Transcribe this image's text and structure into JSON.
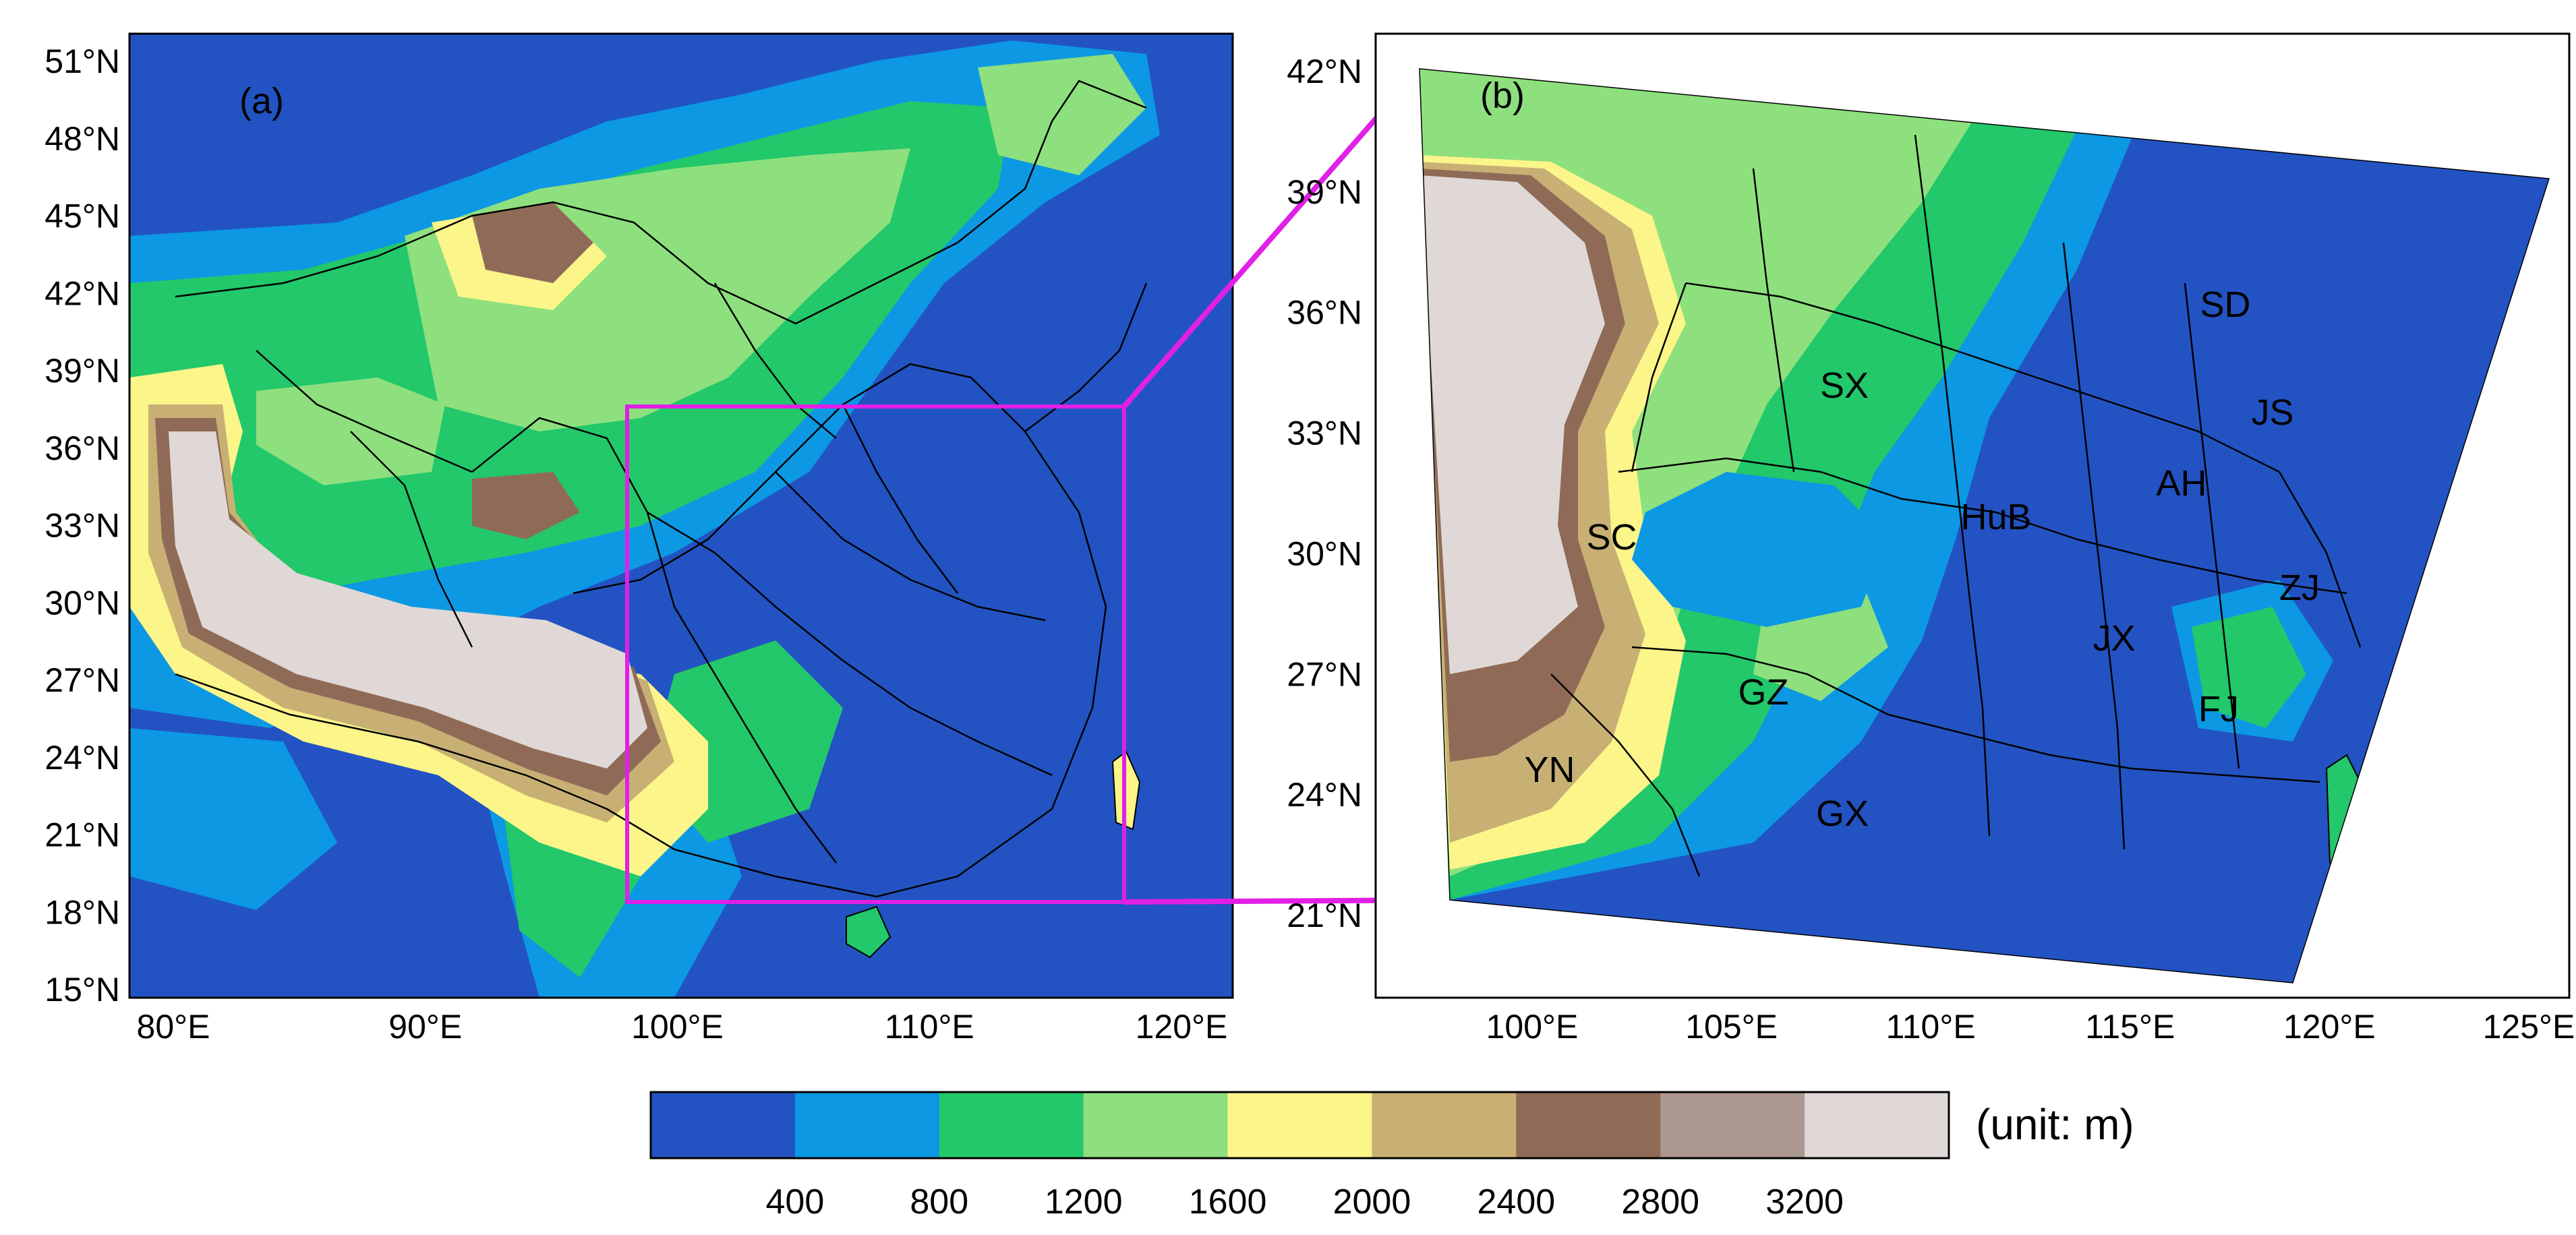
{
  "panel_a": {
    "label": "(a)",
    "lat_ticks": [
      "51°N",
      "48°N",
      "45°N",
      "42°N",
      "39°N",
      "36°N",
      "33°N",
      "30°N",
      "27°N",
      "24°N",
      "21°N",
      "18°N",
      "15°N"
    ],
    "lon_ticks": [
      "80°E",
      "90°E",
      "100°E",
      "110°E",
      "120°E"
    ]
  },
  "panel_b": {
    "label": "(b)",
    "lat_ticks": [
      "42°N",
      "39°N",
      "36°N",
      "33°N",
      "30°N",
      "27°N",
      "24°N",
      "21°N"
    ],
    "lon_ticks": [
      "100°E",
      "105°E",
      "110°E",
      "115°E",
      "120°E",
      "125°E"
    ],
    "province_labels": [
      "SD",
      "SX",
      "JS",
      "AH",
      "HuB",
      "SC",
      "ZJ",
      "JX",
      "GZ",
      "FJ",
      "YN",
      "GX"
    ]
  },
  "colorbar": {
    "unit_label": "(unit: m)",
    "tick_labels": [
      "400",
      "800",
      "1200",
      "1600",
      "2000",
      "2400",
      "2800",
      "3200"
    ],
    "colors": [
      "#2353c2",
      "#0c98e3",
      "#22c86a",
      "#8ee07e",
      "#fbf58a",
      "#c8b074",
      "#8f6b57",
      "#ac9890",
      "#e0d8d6"
    ]
  },
  "colors": {
    "frame": "#000000",
    "highlight_box": "#e020e6"
  }
}
